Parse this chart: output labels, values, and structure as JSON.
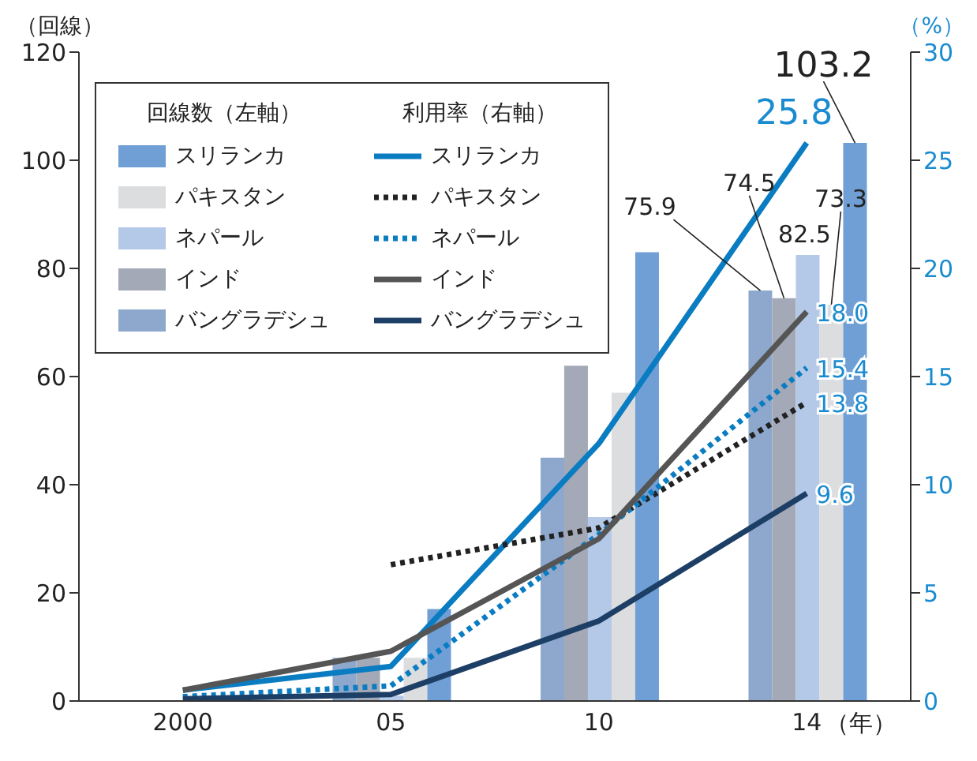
{
  "chart_data": {
    "type": "bar",
    "categories": [
      "2000",
      "05",
      "10",
      "14"
    ],
    "xlabel": "（年）",
    "ylabel": "（回線）",
    "y2label": "（%）",
    "ylim": [
      0,
      120
    ],
    "yticks": [
      0,
      20,
      40,
      60,
      80,
      100,
      120
    ],
    "y2lim": [
      0,
      30
    ],
    "y2ticks": [
      0,
      5,
      10,
      15,
      20,
      25,
      30
    ],
    "legend": "top left",
    "annotations": [
      "回線数（左軸）",
      "利用率（右軸）"
    ],
    "series": [
      {
        "name": "スリランカ",
        "color": "#6f9fd5",
        "values": [
          null,
          17,
          83,
          103.2
        ],
        "value_labels": [
          null,
          null,
          null,
          "103.2"
        ]
      },
      {
        "name": "パキスタン",
        "color": "#dcdddf",
        "values": [
          null,
          8,
          57,
          73.3
        ],
        "value_labels": [
          null,
          null,
          null,
          "73.3"
        ]
      },
      {
        "name": "ネパール",
        "color": "#b4c8e7",
        "values": [
          null,
          1,
          34,
          82.5
        ],
        "value_labels": [
          null,
          null,
          null,
          "82.5"
        ]
      },
      {
        "name": "インド",
        "color": "#a3a9b7",
        "values": [
          null,
          8,
          62,
          74.5
        ],
        "value_labels": [
          null,
          null,
          null,
          "74.5"
        ]
      },
      {
        "name": "バングラデシュ",
        "color": "#8ea8cd",
        "values": [
          null,
          8,
          45,
          75.9
        ],
        "value_labels": [
          null,
          null,
          null,
          "75.9"
        ]
      },
      {
        "name": "スリランカ",
        "type": "line",
        "axis": "y2",
        "color": "#0a7cc1",
        "line_style": "solid",
        "values": [
          0.5,
          1.6,
          11.9,
          25.8
        ],
        "value_labels": [
          null,
          null,
          null,
          "25.8"
        ]
      },
      {
        "name": "パキスタン",
        "type": "line",
        "axis": "y2",
        "color": "#222222",
        "line_style": "dotted",
        "values": [
          null,
          6.3,
          8.0,
          13.8
        ],
        "value_labels": [
          null,
          null,
          null,
          "13.8"
        ]
      },
      {
        "name": "ネパール",
        "type": "line",
        "axis": "y2",
        "color": "#0a7cc1",
        "line_style": "dotted",
        "values": [
          0.2,
          0.7,
          7.7,
          15.4
        ],
        "value_labels": [
          null,
          null,
          null,
          "15.4"
        ]
      },
      {
        "name": "インド",
        "type": "line",
        "axis": "y2",
        "color": "#555555",
        "line_style": "solid",
        "values": [
          0.5,
          2.3,
          7.5,
          18.0
        ],
        "value_labels": [
          null,
          null,
          null,
          "18.0"
        ]
      },
      {
        "name": "バングラデシュ",
        "type": "line",
        "axis": "y2",
        "color": "#1d3f66",
        "line_style": "solid",
        "values": [
          0.1,
          0.3,
          3.7,
          9.6
        ],
        "value_labels": [
          null,
          null,
          null,
          "9.6"
        ]
      }
    ]
  }
}
